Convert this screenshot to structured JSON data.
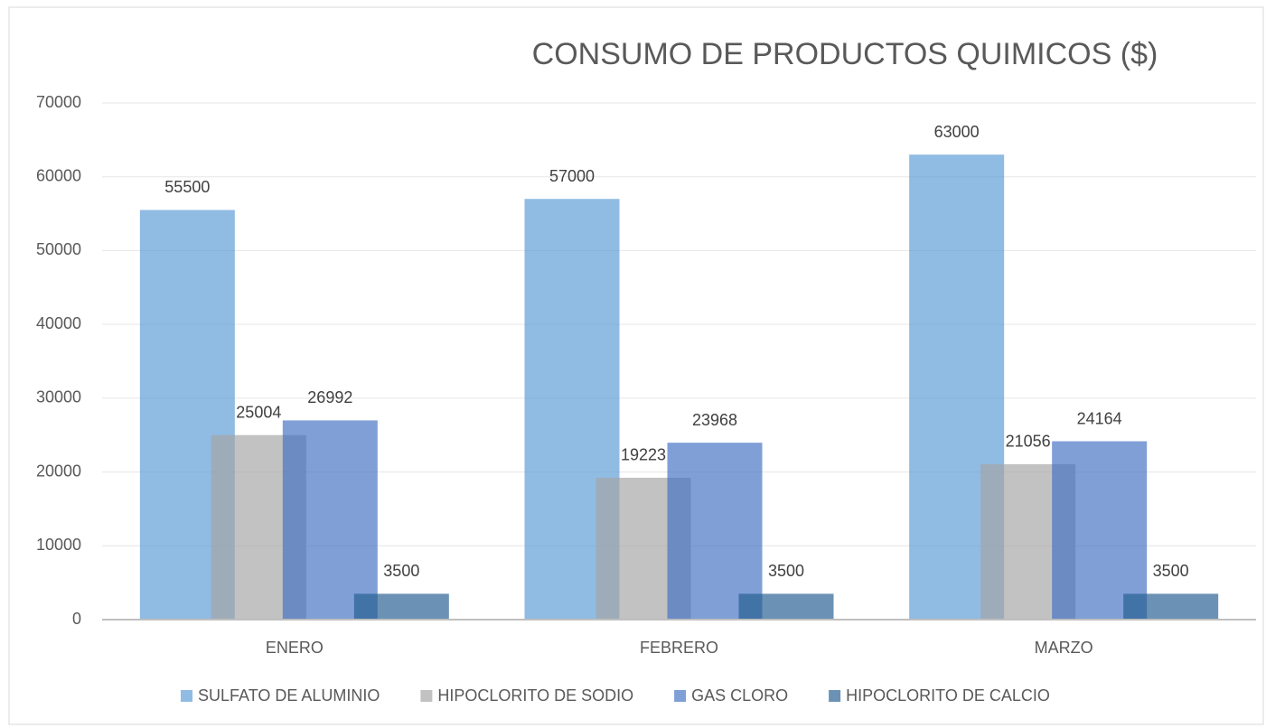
{
  "chart_data": {
    "type": "bar",
    "title": "CONSUMO DE PRODUCTOS QUIMICOS ($)",
    "categories": [
      "ENERO",
      "FEBRERO",
      "MARZO"
    ],
    "series": [
      {
        "name": "SULFATO DE ALUMINIO",
        "color": "#5B9BD5",
        "values": [
          55500,
          57000,
          63000
        ]
      },
      {
        "name": "HIPOCLORITO DE SODIO",
        "color": "#A5A5A5",
        "values": [
          25004,
          19223,
          21056
        ]
      },
      {
        "name": "GAS CLORO",
        "color": "#4472C4",
        "values": [
          26992,
          23968,
          24164
        ]
      },
      {
        "name": "HIPOCLORITO DE CALCIO",
        "color": "#255E91",
        "values": [
          3500,
          3500,
          3500
        ]
      }
    ],
    "ylim": [
      0,
      70000
    ],
    "yticks": [
      0,
      10000,
      20000,
      30000,
      40000,
      50000,
      60000,
      70000
    ],
    "grid": true,
    "legend": "bottom"
  }
}
